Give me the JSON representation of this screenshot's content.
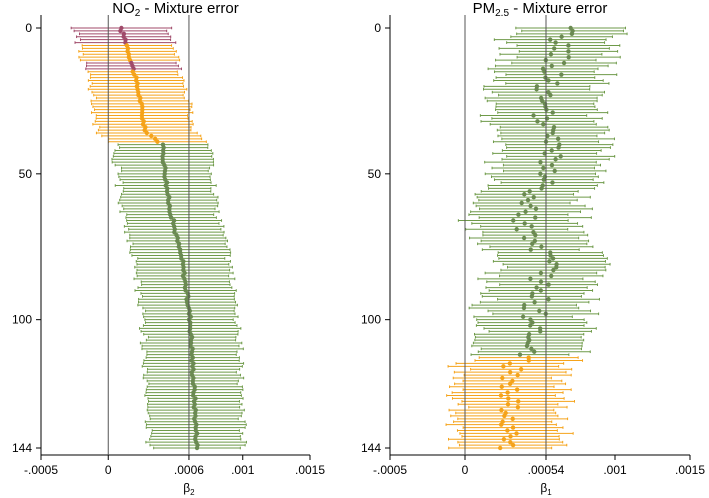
{
  "colors": {
    "purple": "#a04a6a",
    "orange": "#f5a31a",
    "green": "#6e9a48",
    "point_green": "#6b8a52",
    "axis": "#000000",
    "refline": "#555555"
  },
  "chart_data": [
    {
      "type": "forest",
      "title_main": "NO",
      "title_sub": "2",
      "title_rest": " - Mixture error",
      "xlabel_main": "β",
      "xlabel_sub": "2",
      "xlim": [
        -0.0005,
        0.0015
      ],
      "ylim": [
        0,
        144
      ],
      "y_reversed": true,
      "xticks": [
        -0.0005,
        0,
        0.0006,
        0.001,
        0.0015
      ],
      "xtick_labels": [
        "-.0005",
        "0",
        ".0006",
        ".001",
        ".0015"
      ],
      "yticks": [
        0,
        50,
        100,
        144
      ],
      "ytick_labels": [
        "0",
        "50",
        "100",
        "144"
      ],
      "reference_lines": [
        0,
        0.0006
      ],
      "groups": [
        {
          "name": "purple",
          "from": 0,
          "to": 14
        },
        {
          "name": "orange",
          "from": 5,
          "to": 39
        },
        {
          "name": "green",
          "from": 40,
          "to": 144
        }
      ],
      "purple_rows": [
        0,
        1,
        2,
        3,
        4,
        5,
        12,
        13,
        14
      ],
      "estimate_profile": [
        [
          0,
          9e-05
        ],
        [
          5,
          0.000135
        ],
        [
          15,
          0.00019
        ],
        [
          25,
          0.00024
        ],
        [
          35,
          0.00027
        ],
        [
          40,
          0.0004
        ],
        [
          60,
          0.00045
        ],
        [
          70,
          0.0005
        ],
        [
          80,
          0.00055
        ],
        [
          100,
          0.00061
        ],
        [
          144,
          0.00066
        ]
      ],
      "half_width": 0.00035
    },
    {
      "type": "forest",
      "title_main": "PM",
      "title_sub": "2.5",
      "title_rest": " - Mixture error",
      "xlabel_main": "β",
      "xlabel_sub": "1",
      "xlim": [
        -0.0005,
        0.0015
      ],
      "ylim": [
        0,
        144
      ],
      "y_reversed": true,
      "xticks": [
        -0.0005,
        0,
        0.00054,
        0.001,
        0.0015
      ],
      "xtick_labels": [
        "-.0005",
        "0",
        ".00054",
        ".001",
        ".0015"
      ],
      "yticks": [
        0,
        50,
        100,
        144
      ],
      "ytick_labels": [
        "0",
        "50",
        "100",
        "144"
      ],
      "reference_lines": [
        0,
        0.00054
      ],
      "groups": [
        {
          "name": "green",
          "from": 0,
          "to": 112
        },
        {
          "name": "orange",
          "from": 113,
          "to": 144
        }
      ],
      "estimate_profile": [
        [
          0,
          0.00065
        ],
        [
          10,
          0.00062
        ],
        [
          20,
          0.00055
        ],
        [
          30,
          0.0005
        ],
        [
          40,
          0.00058
        ],
        [
          50,
          0.00055
        ],
        [
          60,
          0.0004
        ],
        [
          70,
          0.0004
        ],
        [
          80,
          0.00054
        ],
        [
          100,
          0.00045
        ],
        [
          112,
          0.0004
        ],
        [
          118,
          0.0003
        ],
        [
          130,
          0.0003
        ],
        [
          144,
          0.00025
        ]
      ],
      "half_width": 0.00035
    }
  ]
}
